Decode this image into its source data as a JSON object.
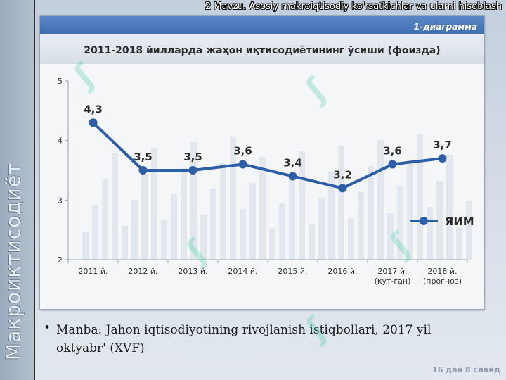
{
  "slide": {
    "topic_header": "2 Mavzu. Asosiy makroiqtisodiy  ko'rsatkichlar va ularni hisoblash",
    "vertical_title": "Макроиктисодиёт",
    "source_text": "Manba: Jahon iqtisodiyotining rivojlanish istiqbollari, 2017 yil oktyabr' (XVF)",
    "bullet": "•",
    "slide_counter": "16 дан 8 слайд"
  },
  "colors": {
    "series_line": "#2d5fa8",
    "banner_top": "#4f7fbf",
    "panel_bg": "#f4f6f8"
  },
  "chart_data": {
    "type": "line",
    "figure_label": "1-диаграмма",
    "title": "2011-2018 йилларда жаҳон иқтисодиётининг ўсиши (фоизда)",
    "categories": [
      "2011 й.",
      "2012 й.",
      "2013 й.",
      "2014 й.",
      "2015 й.",
      "2016 й.",
      [
        "2017 й.",
        "(кут-ган)"
      ],
      [
        "2018 й.",
        "(прогноз)"
      ]
    ],
    "series": [
      {
        "name": "ЯИМ",
        "values": [
          4.3,
          3.5,
          3.5,
          3.6,
          3.4,
          3.2,
          3.6,
          3.7
        ],
        "labels": [
          "4,3",
          "3,5",
          "3,5",
          "3,6",
          "3,4",
          "3,2",
          "3,6",
          "3,7"
        ]
      }
    ],
    "ylim": [
      2,
      5
    ],
    "yticks": [
      "2",
      "3",
      "4",
      "5"
    ],
    "grid": false,
    "legend": "right"
  }
}
